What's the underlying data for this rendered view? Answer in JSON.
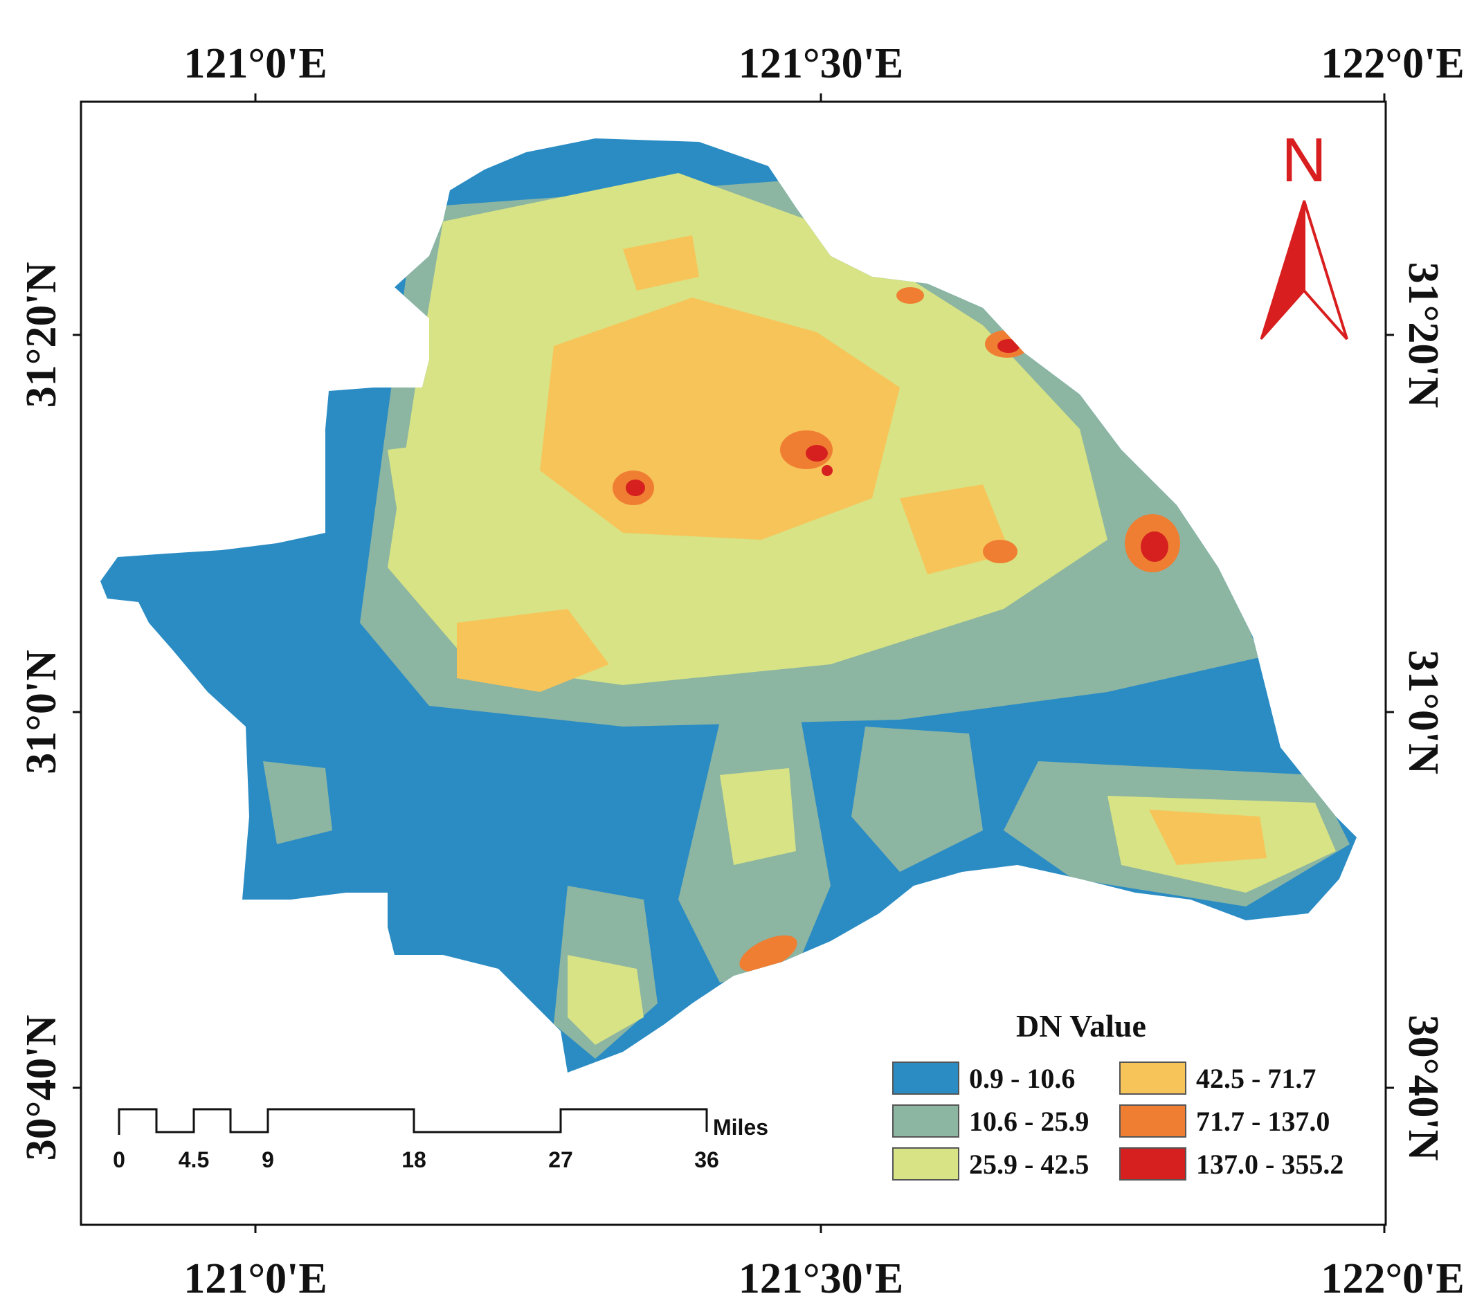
{
  "map": {
    "graticule": {
      "top_lon": [
        "121°0'E",
        "121°30'E",
        "122°0'E"
      ],
      "bottom_lon": [
        "121°0'E",
        "121°30'E",
        "122°0'E"
      ],
      "left_lat": [
        "31°20'N",
        "31°0'N",
        "30°40'N"
      ],
      "right_lat": [
        "31°20'N",
        "31°0'N",
        "30°40'N"
      ]
    },
    "north_arrow": {
      "label": "N",
      "color": "#d81e1e",
      "icon": "north-arrow-icon"
    },
    "legend": {
      "title": "DN Value",
      "classes": [
        {
          "range": "0.9 - 10.6",
          "color": "#2b8cc4"
        },
        {
          "range": "10.6 - 25.9",
          "color": "#8cb5a2"
        },
        {
          "range": "25.9 - 42.5",
          "color": "#d7e384"
        },
        {
          "range": "42.5 - 71.7",
          "color": "#f7c45a"
        },
        {
          "range": "71.7 - 137.0",
          "color": "#ef7e33"
        },
        {
          "range": "137.0 - 355.2",
          "color": "#d62020"
        }
      ]
    },
    "scale_bar": {
      "ticks": [
        "0",
        "4.5",
        "9",
        "18",
        "27",
        "36"
      ],
      "unit": "Miles"
    }
  }
}
